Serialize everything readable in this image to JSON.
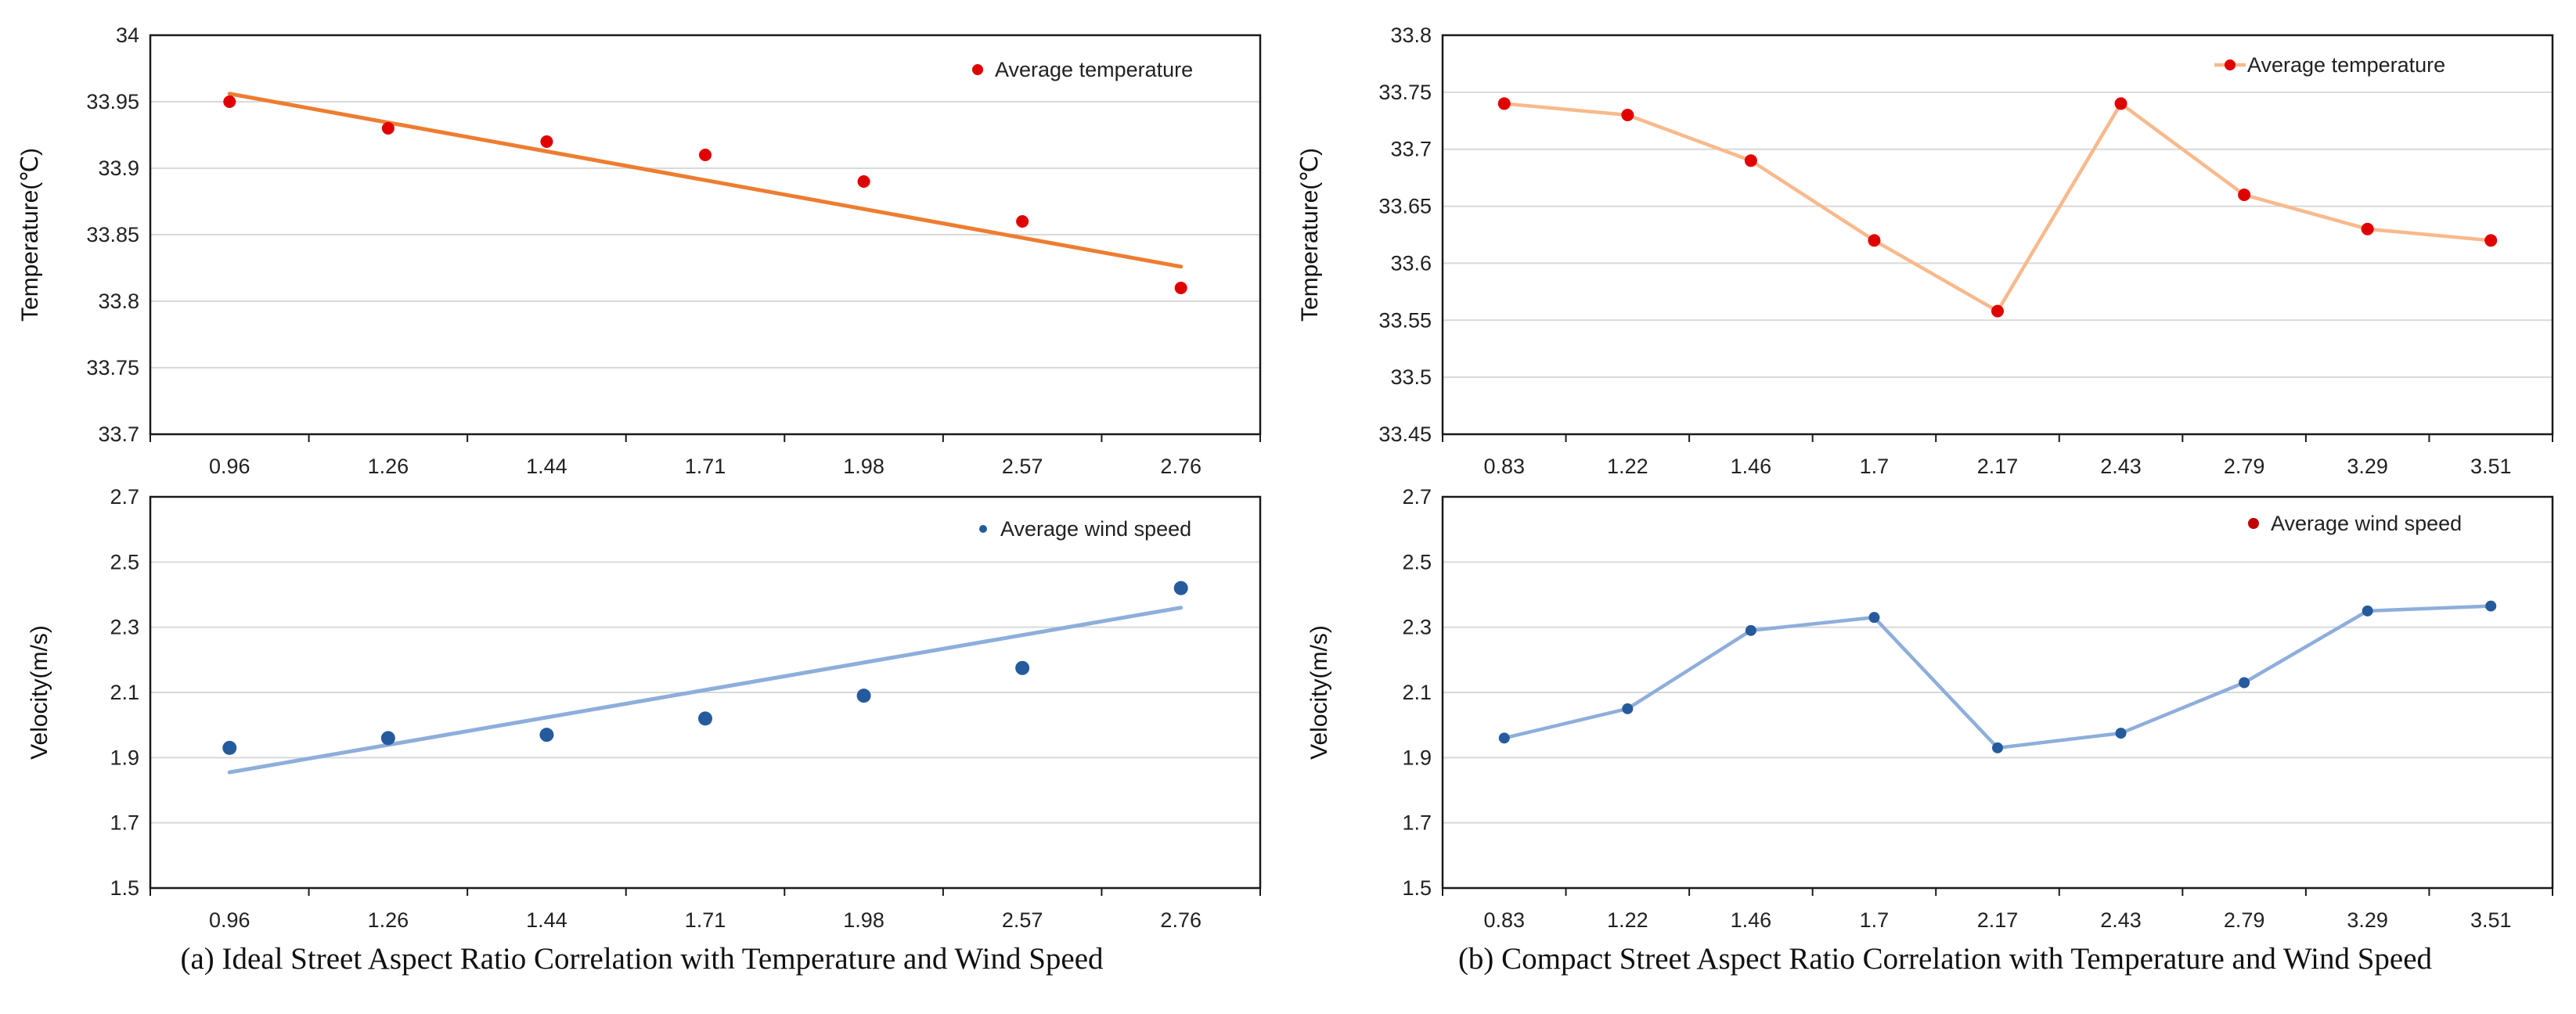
{
  "chart_data": [
    {
      "id": "a-temp",
      "type": "scatter",
      "categories": [
        "0.96",
        "1.26",
        "1.44",
        "1.71",
        "1.98",
        "2.57",
        "2.76"
      ],
      "series": [
        {
          "name": "Average temperature",
          "values": [
            33.95,
            33.93,
            33.92,
            33.91,
            33.89,
            33.86,
            33.81
          ],
          "color": "#e00000",
          "marker": "dot",
          "line": "none"
        }
      ],
      "trendline": {
        "type": "linear",
        "start": 33.956,
        "end": 33.826,
        "color": "#ed7d31"
      },
      "ylabel": "Temperature(℃)",
      "ylim": [
        33.7,
        34
      ],
      "yticks": [
        "33.7",
        "33.75",
        "33.8",
        "33.85",
        "33.9",
        "33.95",
        "34"
      ],
      "grid": true,
      "legend": "top-right"
    },
    {
      "id": "a-wind",
      "type": "scatter",
      "categories": [
        "0.96",
        "1.26",
        "1.44",
        "1.71",
        "1.98",
        "2.57",
        "2.76"
      ],
      "series": [
        {
          "name": "Average wind speed",
          "values": [
            1.93,
            1.96,
            1.97,
            2.02,
            2.09,
            2.175,
            2.42
          ],
          "color": "#255b9c",
          "marker": "dot",
          "line": "none"
        }
      ],
      "trendline": {
        "type": "linear",
        "start": 1.855,
        "end": 2.36,
        "color": "#8eaedb"
      },
      "ylabel": "Velocity(m/s)",
      "ylim": [
        1.5,
        2.7
      ],
      "yticks": [
        "1.5",
        "1.7",
        "1.9",
        "2.1",
        "2.3",
        "2.5",
        "2.7"
      ],
      "grid": true,
      "legend": "top-right"
    },
    {
      "id": "b-temp",
      "type": "line",
      "categories": [
        "0.83",
        "1.22",
        "1.46",
        "1.7",
        "2.17",
        "2.43",
        "2.79",
        "3.29",
        "3.51"
      ],
      "series": [
        {
          "name": "Average temperature",
          "values": [
            33.74,
            33.73,
            33.69,
            33.62,
            33.558,
            33.74,
            33.66,
            33.63,
            33.62
          ],
          "color": "#e00000",
          "lineColor": "#f8b98c",
          "marker": "dot",
          "line": "solid"
        }
      ],
      "ylabel": "Temperature(℃)",
      "ylim": [
        33.45,
        33.8
      ],
      "yticks": [
        "33.45",
        "33.5",
        "33.55",
        "33.6",
        "33.65",
        "33.7",
        "33.75",
        "33.8"
      ],
      "grid": true,
      "legend": "top-right"
    },
    {
      "id": "b-wind",
      "type": "line",
      "categories": [
        "0.83",
        "1.22",
        "1.46",
        "1.7",
        "2.17",
        "2.43",
        "2.79",
        "3.29",
        "3.51"
      ],
      "series": [
        {
          "name": "Average wind speed",
          "values": [
            1.96,
            2.05,
            2.29,
            2.33,
            1.93,
            1.975,
            2.13,
            2.35,
            2.365
          ],
          "color": "#255b9c",
          "lineColor": "#8eaedb",
          "legendColor": "#c00000",
          "marker": "dot",
          "line": "solid"
        }
      ],
      "ylabel": "Velocity(m/s)",
      "ylim": [
        1.5,
        2.7
      ],
      "yticks": [
        "1.5",
        "1.7",
        "1.9",
        "2.1",
        "2.3",
        "2.5",
        "2.7"
      ],
      "grid": true,
      "legend": "top-right"
    }
  ],
  "captions": {
    "a": "(a) Ideal Street Aspect Ratio Correlation with Temperature and Wind Speed",
    "b": "(b) Compact Street Aspect Ratio Correlation with Temperature and Wind Speed"
  }
}
